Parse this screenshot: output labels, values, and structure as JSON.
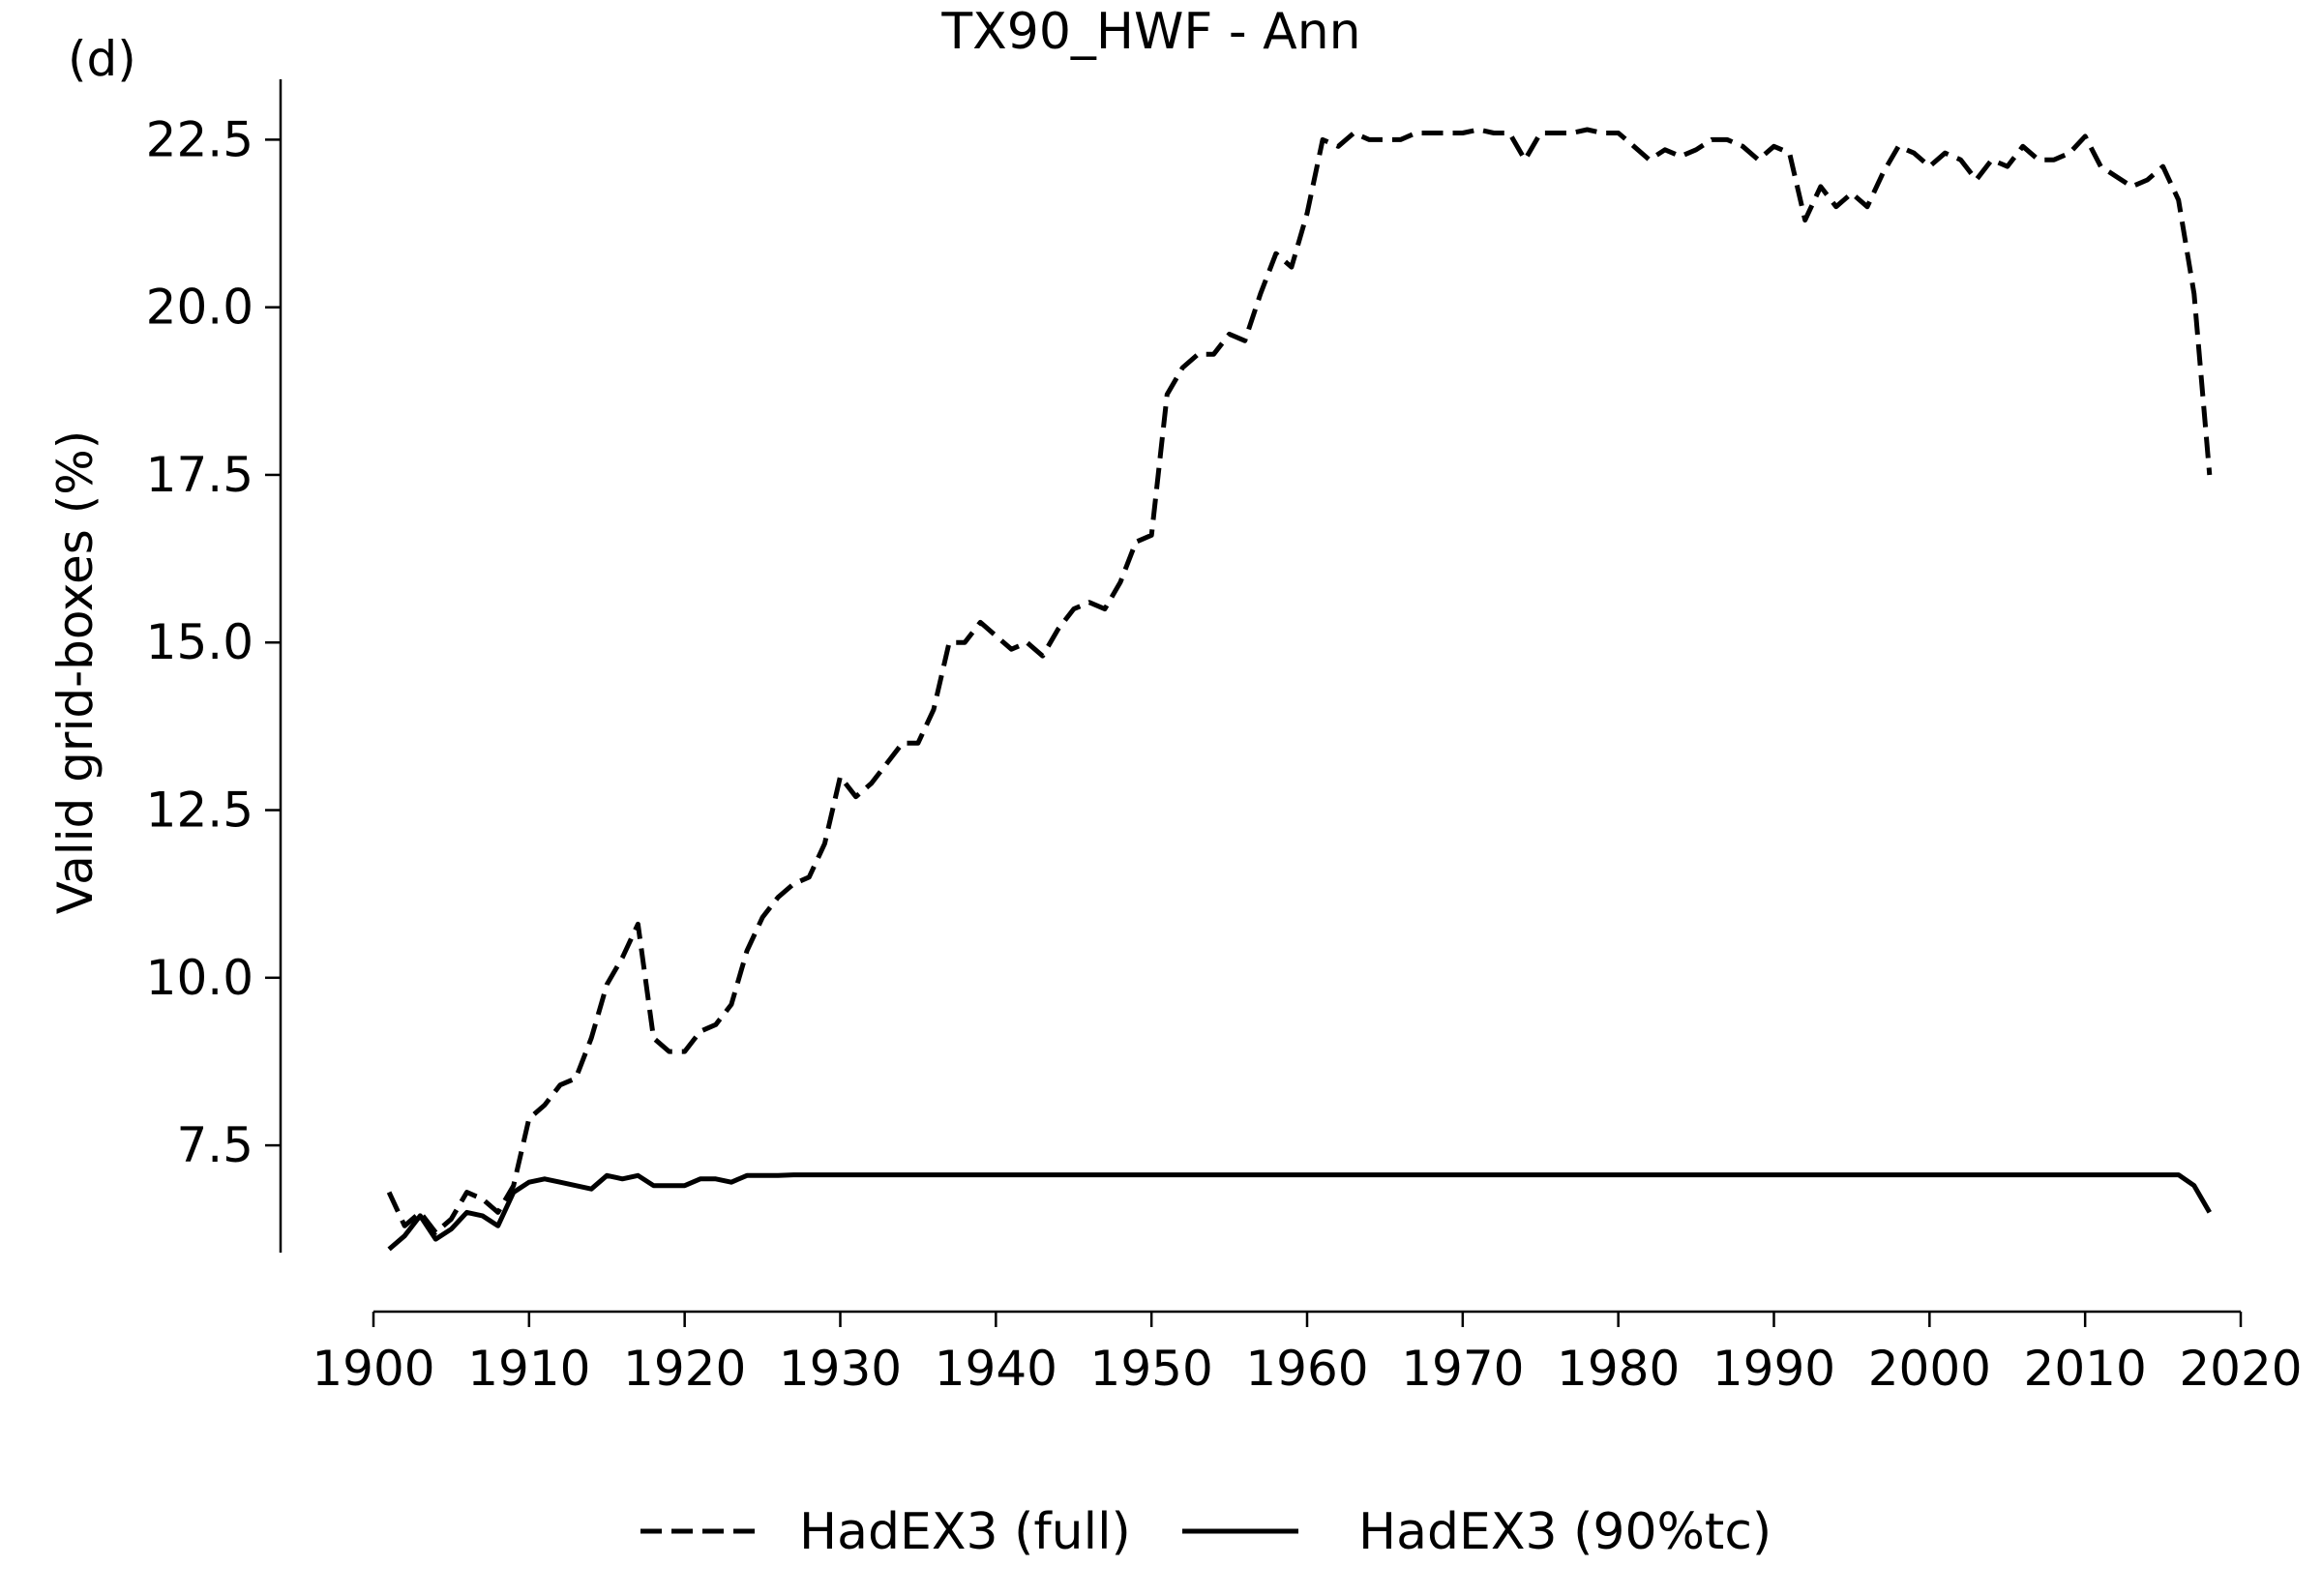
{
  "panel_label": "(d)",
  "chart_data": {
    "type": "line",
    "title": "TX90_HWF - Ann",
    "xlabel": "",
    "ylabel": "Valid grid-boxes (%)",
    "xlim": [
      1900,
      2020
    ],
    "ylim": [
      5.9,
      23.4
    ],
    "xticks": [
      1900,
      1910,
      1920,
      1930,
      1940,
      1950,
      1960,
      1970,
      1980,
      1990,
      2000,
      2010,
      2020
    ],
    "yticks": [
      7.5,
      10.0,
      12.5,
      15.0,
      17.5,
      20.0,
      22.5
    ],
    "ytick_labels": [
      "7.5",
      "10.0",
      "12.5",
      "15.0",
      "17.5",
      "20.0",
      "22.5"
    ],
    "grid": false,
    "legend_position": "bottom-center",
    "x": [
      1901,
      1902,
      1903,
      1904,
      1905,
      1906,
      1907,
      1908,
      1909,
      1910,
      1911,
      1912,
      1913,
      1914,
      1915,
      1916,
      1917,
      1918,
      1919,
      1920,
      1921,
      1922,
      1923,
      1924,
      1925,
      1926,
      1927,
      1928,
      1929,
      1930,
      1931,
      1932,
      1933,
      1934,
      1935,
      1936,
      1937,
      1938,
      1939,
      1940,
      1941,
      1942,
      1943,
      1944,
      1945,
      1946,
      1947,
      1948,
      1949,
      1950,
      1951,
      1952,
      1953,
      1954,
      1955,
      1956,
      1957,
      1958,
      1959,
      1960,
      1961,
      1962,
      1963,
      1964,
      1965,
      1966,
      1967,
      1968,
      1969,
      1970,
      1971,
      1972,
      1973,
      1974,
      1975,
      1976,
      1977,
      1978,
      1979,
      1980,
      1981,
      1982,
      1983,
      1984,
      1985,
      1986,
      1987,
      1988,
      1989,
      1990,
      1991,
      1992,
      1993,
      1994,
      1995,
      1996,
      1997,
      1998,
      1999,
      2000,
      2001,
      2002,
      2003,
      2004,
      2005,
      2006,
      2007,
      2008,
      2009,
      2010,
      2011,
      2012,
      2013,
      2014,
      2015,
      2016,
      2017,
      2018
    ],
    "series": [
      {
        "name": "HadEX3 (full)",
        "style": "dashed",
        "color": "#000000",
        "values": [
          6.8,
          6.3,
          6.5,
          6.2,
          6.4,
          6.8,
          6.7,
          6.5,
          6.9,
          7.9,
          8.1,
          8.4,
          8.5,
          9.1,
          9.9,
          10.3,
          10.8,
          9.1,
          8.9,
          8.9,
          9.2,
          9.3,
          9.6,
          10.4,
          10.9,
          11.2,
          11.4,
          11.5,
          12.0,
          13.0,
          12.7,
          12.9,
          13.2,
          13.5,
          13.5,
          14.0,
          15.0,
          15.0,
          15.3,
          15.1,
          14.9,
          15.0,
          14.8,
          15.2,
          15.5,
          15.6,
          15.5,
          15.9,
          16.5,
          16.6,
          18.7,
          19.1,
          19.3,
          19.3,
          19.6,
          19.5,
          20.2,
          20.8,
          20.6,
          21.4,
          22.5,
          22.4,
          22.6,
          22.5,
          22.5,
          22.5,
          22.6,
          22.6,
          22.6,
          22.6,
          22.65,
          22.6,
          22.6,
          22.2,
          22.6,
          22.6,
          22.6,
          22.65,
          22.6,
          22.6,
          22.4,
          22.2,
          22.35,
          22.25,
          22.35,
          22.5,
          22.5,
          22.4,
          22.2,
          22.4,
          22.3,
          21.3,
          21.8,
          21.5,
          21.7,
          21.5,
          22.0,
          22.4,
          22.3,
          22.1,
          22.3,
          22.2,
          21.9,
          22.2,
          22.1,
          22.4,
          22.2,
          22.2,
          22.3,
          22.55,
          22.1,
          21.95,
          21.8,
          21.9,
          22.1,
          21.6,
          20.2,
          17.5
        ]
      },
      {
        "name": "HadEX3 (90%tc)",
        "style": "solid",
        "color": "#000000",
        "values": [
          5.95,
          6.15,
          6.45,
          6.1,
          6.25,
          6.5,
          6.45,
          6.3,
          6.8,
          6.95,
          7.0,
          6.95,
          6.9,
          6.85,
          7.05,
          7.0,
          7.05,
          6.9,
          6.9,
          6.9,
          7.0,
          7.0,
          6.95,
          7.05,
          7.05,
          7.05,
          7.06,
          7.06,
          7.06,
          7.06,
          7.06,
          7.06,
          7.06,
          7.06,
          7.06,
          7.06,
          7.06,
          7.06,
          7.06,
          7.06,
          7.06,
          7.06,
          7.06,
          7.06,
          7.06,
          7.06,
          7.06,
          7.06,
          7.06,
          7.06,
          7.06,
          7.06,
          7.06,
          7.06,
          7.06,
          7.06,
          7.06,
          7.06,
          7.06,
          7.06,
          7.06,
          7.06,
          7.06,
          7.06,
          7.06,
          7.06,
          7.06,
          7.06,
          7.06,
          7.06,
          7.06,
          7.06,
          7.06,
          7.06,
          7.06,
          7.06,
          7.06,
          7.06,
          7.06,
          7.06,
          7.06,
          7.06,
          7.06,
          7.06,
          7.06,
          7.06,
          7.06,
          7.06,
          7.06,
          7.06,
          7.06,
          7.06,
          7.06,
          7.06,
          7.06,
          7.06,
          7.06,
          7.06,
          7.06,
          7.06,
          7.06,
          7.06,
          7.06,
          7.06,
          7.06,
          7.06,
          7.06,
          7.06,
          7.06,
          7.06,
          7.06,
          7.06,
          7.06,
          7.06,
          7.06,
          7.06,
          6.9,
          6.5
        ]
      }
    ]
  }
}
